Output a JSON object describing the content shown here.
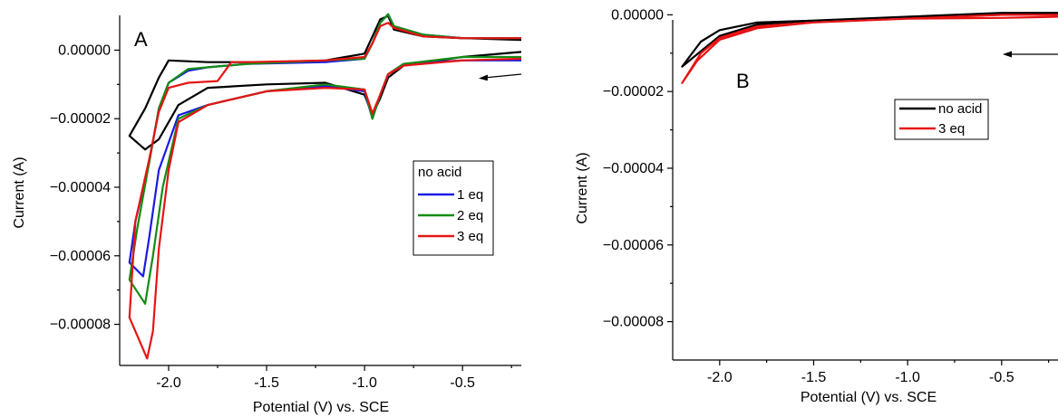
{
  "chart_data": [
    {
      "type": "line",
      "panel_label": "A",
      "xlabel": "Potential (V) vs. SCE",
      "ylabel": "Current (A)",
      "xlim": [
        -2.25,
        -0.2
      ],
      "ylim": [
        -9.2e-05,
        1.2e-05
      ],
      "xticks": [
        -2.0,
        -1.5,
        -1.0,
        -0.5
      ],
      "xtick_labels": [
        "-2.0",
        "-1.5",
        "-1.0",
        "-0.5"
      ],
      "yticks": [
        0.0,
        -2e-05,
        -4e-05,
        -6e-05,
        -8e-05
      ],
      "ytick_labels": [
        "0.00000",
        "−0.00002",
        "−0.00004",
        "−0.00006",
        "−0.00008"
      ],
      "legend": {
        "placement": "right",
        "title": "no acid"
      },
      "annotations": [
        "arrow pointing toward negative potential"
      ],
      "series": [
        {
          "name": "no acid",
          "color": "#000000",
          "x": [
            -0.2,
            -0.5,
            -0.8,
            -0.88,
            -0.92,
            -0.96,
            -1.0,
            -1.2,
            -1.5,
            -1.8,
            -1.95,
            -2.05,
            -2.12,
            -2.2,
            -2.12,
            -2.05,
            -2.0,
            -1.8,
            -1.5,
            -1.2,
            -1.0,
            -0.96,
            -0.92,
            -0.88,
            -0.85,
            -0.7,
            -0.5,
            -0.2
          ],
          "y": [
            -5e-07,
            -2e-06,
            -4.5e-06,
            -8e-06,
            -1.4e-05,
            -1.9e-05,
            -1.3e-05,
            -9.5e-06,
            -1e-05,
            -1.1e-05,
            -1.6e-05,
            -2.6e-05,
            -2.9e-05,
            -2.5e-05,
            -1.7e-05,
            -8e-06,
            -3e-06,
            -3.5e-06,
            -3.5e-06,
            -3e-06,
            -1e-06,
            4e-06,
            9e-06,
            1e-05,
            6e-06,
            4e-06,
            3.5e-06,
            3e-06
          ]
        },
        {
          "name": "1 eq",
          "color": "#1a1ae6",
          "x": [
            -0.2,
            -0.5,
            -0.8,
            -0.88,
            -0.92,
            -0.96,
            -1.0,
            -1.2,
            -1.5,
            -1.8,
            -1.95,
            -2.05,
            -2.1,
            -2.13,
            -2.2,
            -2.17,
            -2.1,
            -2.05,
            -2.0,
            -1.9,
            -1.8,
            -1.6,
            -1.2,
            -1.0,
            -0.96,
            -0.92,
            -0.88,
            -0.85,
            -0.7,
            -0.5,
            -0.2
          ],
          "y": [
            -3e-06,
            -3e-06,
            -4e-06,
            -7e-06,
            -1.3e-05,
            -2e-05,
            -1.2e-05,
            -1.05e-05,
            -1.2e-05,
            -1.6e-05,
            -1.9e-05,
            -3.5e-05,
            -5.5e-05,
            -6.6e-05,
            -6.2e-05,
            -5e-05,
            -3.3e-05,
            -1.7e-05,
            -9.5e-06,
            -6e-06,
            -5e-06,
            -4e-06,
            -3.5e-06,
            -2.5e-06,
            2e-06,
            8e-06,
            1.05e-05,
            7e-06,
            4.5e-06,
            3.5e-06,
            3.5e-06
          ]
        },
        {
          "name": "2 eq",
          "color": "#148c14",
          "x": [
            -0.2,
            -0.5,
            -0.8,
            -0.88,
            -0.92,
            -0.96,
            -1.0,
            -1.2,
            -1.5,
            -1.8,
            -1.95,
            -2.03,
            -2.08,
            -2.12,
            -2.2,
            -2.16,
            -2.1,
            -2.05,
            -2.0,
            -1.9,
            -1.8,
            -1.6,
            -1.2,
            -1.0,
            -0.96,
            -0.92,
            -0.88,
            -0.85,
            -0.7,
            -0.5,
            -0.2
          ],
          "y": [
            -2e-06,
            -2e-06,
            -4e-06,
            -7e-06,
            -1.3e-05,
            -2e-05,
            -1.15e-05,
            -1e-05,
            -1.2e-05,
            -1.6e-05,
            -2e-05,
            -4e-05,
            -6e-05,
            -7.4e-05,
            -6.7e-05,
            -5.2e-05,
            -3.3e-05,
            -1.7e-05,
            -9.5e-06,
            -5.5e-06,
            -5e-06,
            -4e-06,
            -3e-06,
            -2.5e-06,
            2e-06,
            8e-06,
            1.05e-05,
            7e-06,
            4.5e-06,
            3.5e-06,
            3.5e-06
          ]
        },
        {
          "name": "3 eq",
          "color": "#e61414",
          "x": [
            -0.2,
            -0.5,
            -0.8,
            -0.88,
            -0.92,
            -0.96,
            -1.0,
            -1.2,
            -1.5,
            -1.8,
            -1.95,
            -2.0,
            -2.05,
            -2.08,
            -2.11,
            -2.2,
            -2.17,
            -2.1,
            -2.05,
            -2.0,
            -1.9,
            -1.75,
            -1.68,
            -1.6,
            -1.2,
            -1.0,
            -0.96,
            -0.92,
            -0.88,
            -0.85,
            -0.7,
            -0.5,
            -0.2
          ],
          "y": [
            -2.5e-06,
            -3e-06,
            -4.5e-06,
            -7e-06,
            -1.3e-05,
            -1.85e-05,
            -1.15e-05,
            -1.1e-05,
            -1.2e-05,
            -1.6e-05,
            -2.1e-05,
            -3.5e-05,
            -5.8e-05,
            -8.2e-05,
            -9e-05,
            -7.8e-05,
            -5e-05,
            -3.2e-05,
            -1.8e-05,
            -1.1e-05,
            -9.5e-06,
            -9e-06,
            -3.5e-06,
            -3.5e-06,
            -3e-06,
            -2e-06,
            2e-06,
            7e-06,
            8e-06,
            6.5e-06,
            4e-06,
            3.5e-06,
            3.5e-06
          ]
        }
      ]
    },
    {
      "type": "line",
      "panel_label": "B",
      "xlabel": "Potential (V) vs. SCE",
      "ylabel": "Current (A)",
      "xlim": [
        -2.25,
        -0.2
      ],
      "ylim": [
        -9e-05,
        1.5e-06
      ],
      "xticks": [
        -2.0,
        -1.5,
        -1.0,
        -0.5
      ],
      "xtick_labels": [
        "-2.0",
        "-1.5",
        "-1.0",
        "-0.5"
      ],
      "yticks": [
        0.0,
        -2e-05,
        -4e-05,
        -6e-05,
        -8e-05
      ],
      "ytick_labels": [
        "0.00000",
        "−0.00002",
        "−0.00004",
        "−0.00006",
        "−0.00008"
      ],
      "legend": {
        "placement": "upper-right"
      },
      "annotations": [
        "arrow pointing toward negative potential"
      ],
      "series": [
        {
          "name": "no acid",
          "color": "#000000",
          "x": [
            -0.2,
            -0.5,
            -1.0,
            -1.5,
            -1.8,
            -2.0,
            -2.1,
            -2.2,
            -2.1,
            -2.0,
            -1.8,
            -1.5,
            -1.0,
            -0.5,
            -0.2
          ],
          "y": [
            0.0,
            0.0,
            -5e-07,
            -1.5e-06,
            -2e-06,
            -4e-06,
            -7e-06,
            -1.35e-05,
            -9.5e-06,
            -5.5e-06,
            -2.5e-06,
            -1.5e-06,
            -5e-07,
            5e-07,
            5e-07
          ]
        },
        {
          "name": "3 eq",
          "color": "#e61414",
          "x": [
            -0.2,
            -0.5,
            -1.0,
            -1.5,
            -1.8,
            -2.0,
            -2.1,
            -2.2,
            -2.12,
            -2.0,
            -1.8,
            -1.5,
            -1.0,
            -0.5,
            -0.2
          ],
          "y": [
            -5e-07,
            -8e-07,
            -1e-06,
            -2e-06,
            -3e-06,
            -6e-06,
            -1e-05,
            -1.78e-05,
            -1.2e-05,
            -6.5e-06,
            -3.5e-06,
            -2e-06,
            -1e-06,
            0.0,
            0.0
          ]
        }
      ]
    }
  ]
}
